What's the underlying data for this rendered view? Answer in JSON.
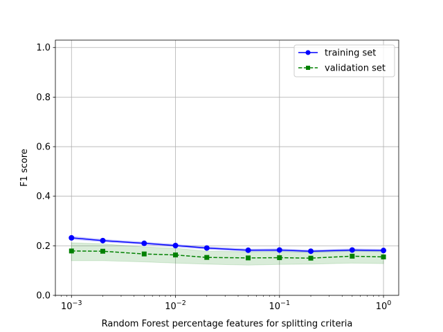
{
  "chart_data": {
    "type": "line",
    "xlabel": "Random Forest percentage features for splitting criteria",
    "ylabel": "F1 score",
    "xscale": "log",
    "xlim": [
      0.0007,
      1.4
    ],
    "ylim": [
      0.0,
      1.03
    ],
    "grid": true,
    "legend": "top-right",
    "x": [
      0.001,
      0.002,
      0.005,
      0.01,
      0.02,
      0.05,
      0.1,
      0.2,
      0.5,
      1.0
    ],
    "x_ticks": [
      0.001,
      0.01,
      0.1,
      1.0
    ],
    "x_tick_labels": [
      {
        "base": "10",
        "exp": "−3"
      },
      {
        "base": "10",
        "exp": "−2"
      },
      {
        "base": "10",
        "exp": "−1"
      },
      {
        "base": "10",
        "exp": "0"
      }
    ],
    "y_ticks": [
      0.0,
      0.2,
      0.4,
      0.6,
      0.8,
      1.0
    ],
    "y_tick_labels": [
      "0.0",
      "0.2",
      "0.4",
      "0.6",
      "0.8",
      "1.0"
    ],
    "series": [
      {
        "name": "training set",
        "color": "#0000ff",
        "marker": "circle",
        "linestyle": "solid",
        "values": [
          0.232,
          0.221,
          0.21,
          0.201,
          0.191,
          0.182,
          0.183,
          0.178,
          0.183,
          0.181
        ],
        "band_low": [
          0.226,
          0.216,
          0.205,
          0.196,
          0.186,
          0.177,
          0.178,
          0.173,
          0.178,
          0.176
        ],
        "band_high": [
          0.238,
          0.226,
          0.215,
          0.206,
          0.196,
          0.187,
          0.188,
          0.183,
          0.188,
          0.186
        ]
      },
      {
        "name": "validation set",
        "color": "#008000",
        "marker": "square",
        "linestyle": "dashed",
        "values": [
          0.179,
          0.178,
          0.167,
          0.163,
          0.153,
          0.151,
          0.152,
          0.15,
          0.158,
          0.155
        ],
        "band_low": [
          0.14,
          0.14,
          0.135,
          0.13,
          0.126,
          0.122,
          0.125,
          0.126,
          0.13,
          0.128
        ],
        "band_high": [
          0.212,
          0.208,
          0.195,
          0.19,
          0.178,
          0.176,
          0.177,
          0.175,
          0.18,
          0.178
        ]
      }
    ]
  }
}
